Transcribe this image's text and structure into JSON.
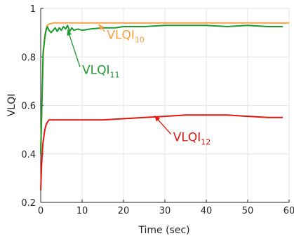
{
  "chart_data": {
    "type": "line",
    "title": "",
    "xlabel": "Time (sec)",
    "ylabel": "VLQI",
    "xlim": [
      0,
      60
    ],
    "ylim": [
      0.2,
      1.0
    ],
    "xticks": [
      0,
      10,
      20,
      30,
      40,
      50,
      60
    ],
    "xtick_labels": [
      "0",
      "10",
      "20",
      "30",
      "40",
      "50",
      "60"
    ],
    "yticks": [
      0.2,
      0.4,
      0.6,
      0.8,
      1.0
    ],
    "ytick_labels": [
      "0.2",
      "0.4",
      "0.6",
      "0.8",
      "1"
    ],
    "grid": true,
    "legend": "none",
    "series": [
      {
        "color": "#f7a03c",
        "x": [
          0,
          0.3,
          0.6,
          1.0,
          1.3,
          1.6,
          2,
          3,
          5,
          10,
          15,
          20,
          30,
          40,
          50,
          60
        ],
        "y": [
          0.42,
          0.62,
          0.8,
          0.89,
          0.915,
          0.93,
          0.935,
          0.94,
          0.94,
          0.94,
          0.94,
          0.94,
          0.94,
          0.94,
          0.94,
          0.94
        ]
      },
      {
        "color": "#1b9a2e",
        "x": [
          0,
          0.3,
          0.6,
          1.0,
          1.3,
          1.6,
          2.0,
          2.5,
          3.0,
          3.5,
          4.0,
          4.5,
          5.0,
          5.5,
          6.0,
          6.5,
          7.0,
          7.5,
          8.0,
          9.0,
          10,
          12,
          15,
          18,
          20,
          25,
          30,
          35,
          40,
          45,
          50,
          55,
          58.5
        ],
        "y": [
          0.4,
          0.62,
          0.82,
          0.88,
          0.91,
          0.925,
          0.91,
          0.9,
          0.91,
          0.92,
          0.905,
          0.92,
          0.91,
          0.925,
          0.915,
          0.93,
          0.905,
          0.92,
          0.91,
          0.915,
          0.91,
          0.915,
          0.92,
          0.92,
          0.925,
          0.925,
          0.93,
          0.93,
          0.93,
          0.925,
          0.93,
          0.925,
          0.925
        ]
      },
      {
        "color": "#e3170d",
        "x": [
          0,
          0.2,
          0.5,
          1.0,
          1.3,
          1.6,
          2.0,
          3.0,
          5.0,
          7.0,
          10,
          15,
          20,
          25,
          30,
          35,
          40,
          45,
          50,
          55,
          58.5
        ],
        "y": [
          0.25,
          0.35,
          0.44,
          0.5,
          0.52,
          0.53,
          0.54,
          0.54,
          0.54,
          0.54,
          0.54,
          0.54,
          0.545,
          0.55,
          0.555,
          0.56,
          0.56,
          0.56,
          0.555,
          0.55,
          0.55
        ]
      }
    ],
    "annotations": [
      {
        "text": "VLQI",
        "subscript": "10",
        "color": "#f7a03c",
        "at": [
          16,
          0.875
        ],
        "points_to": [
          14,
          0.935
        ]
      },
      {
        "text": "VLQI",
        "subscript": "11",
        "color": "#1b9a2e",
        "at": [
          10,
          0.73
        ],
        "points_to": [
          6.5,
          0.912
        ]
      },
      {
        "text": "VLQI",
        "subscript": "12",
        "color": "#e3170d",
        "at": [
          32,
          0.452
        ],
        "points_to": [
          27.5,
          0.557
        ]
      }
    ]
  }
}
